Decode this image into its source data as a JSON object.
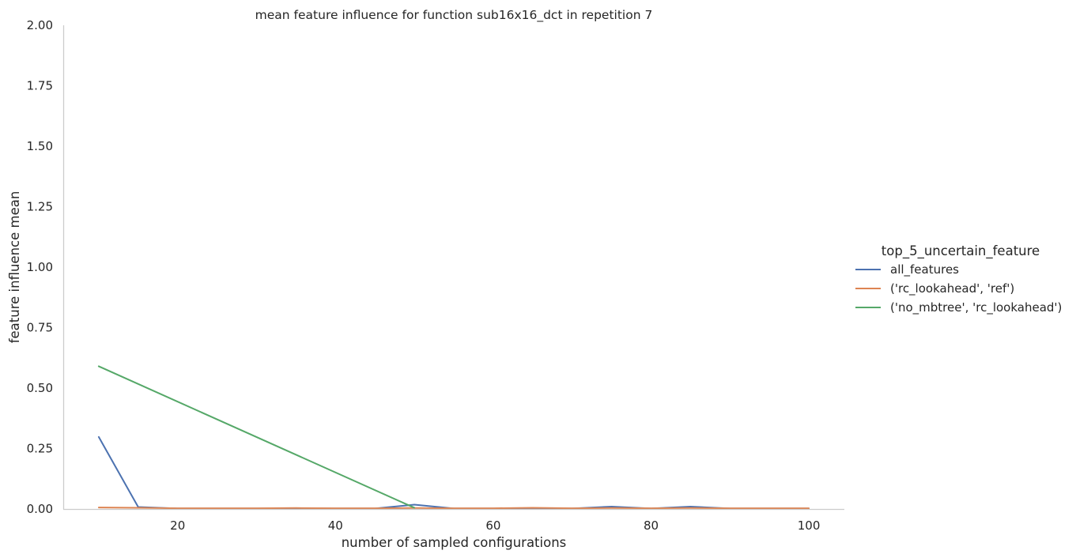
{
  "chart_data": {
    "type": "line",
    "title": "mean feature influence for function sub16x16_dct in repetition 7",
    "xlabel": "number of sampled configurations",
    "ylabel": "feature influence mean",
    "xlim": [
      5.5,
      104.5
    ],
    "ylim": [
      0,
      2.0
    ],
    "xticks": [
      20,
      40,
      60,
      80,
      100
    ],
    "yticks": [
      "0.00",
      "0.25",
      "0.50",
      "0.75",
      "1.00",
      "1.25",
      "1.50",
      "1.75",
      "2.00"
    ],
    "grid": false,
    "legend": {
      "title": "top_5_uncertain_feature",
      "placement": "right"
    },
    "series": [
      {
        "name": "all_features",
        "color": "#4c72b0",
        "x": [
          10,
          15,
          20,
          25,
          30,
          35,
          40,
          45,
          50,
          55,
          60,
          65,
          70,
          75,
          80,
          85,
          90,
          95,
          100
        ],
        "y": [
          0.298,
          0.008,
          0.002,
          0.002,
          0.002,
          0.003,
          0.002,
          0.002,
          0.018,
          0.002,
          0.002,
          0.003,
          0.002,
          0.01,
          0.002,
          0.01,
          0.002,
          0.002,
          0.002
        ]
      },
      {
        "name": "('rc_lookahead', 'ref')",
        "color": "#dd8452",
        "x": [
          10,
          15,
          20,
          25,
          30,
          35,
          40,
          45,
          50,
          55,
          60,
          65,
          70,
          75,
          80,
          85,
          90,
          95,
          100
        ],
        "y": [
          0.006,
          0.005,
          0.003,
          0.003,
          0.003,
          0.004,
          0.003,
          0.003,
          0.004,
          0.003,
          0.003,
          0.005,
          0.003,
          0.004,
          0.003,
          0.004,
          0.003,
          0.003,
          0.003
        ]
      },
      {
        "name": "('no_mbtree', 'rc_lookahead')",
        "color": "#55a868",
        "x": [
          10,
          50
        ],
        "y": [
          0.59,
          0.005
        ]
      }
    ]
  }
}
